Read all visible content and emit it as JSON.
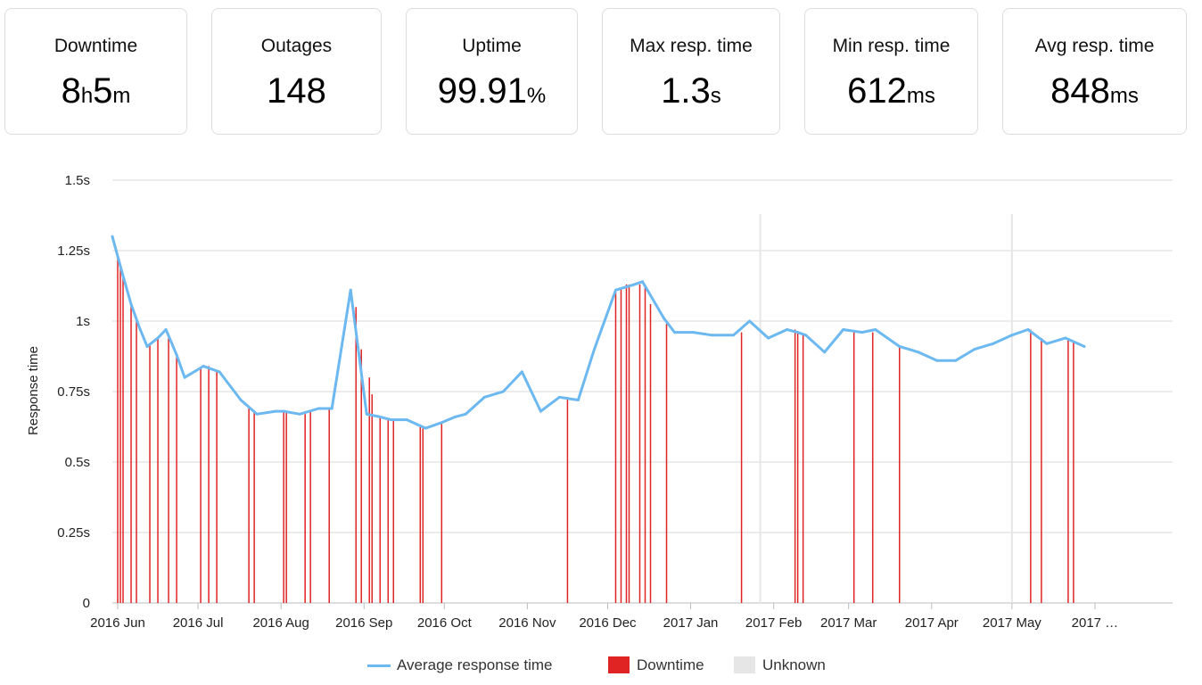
{
  "stats": [
    {
      "title": "Downtime",
      "parts": [
        {
          "v": "8",
          "u": "h"
        },
        {
          "v": "5",
          "u": "m"
        }
      ]
    },
    {
      "title": "Outages",
      "parts": [
        {
          "v": "148",
          "u": ""
        }
      ]
    },
    {
      "title": "Uptime",
      "parts": [
        {
          "v": "99.91",
          "u": "%"
        }
      ]
    },
    {
      "title": "Max resp. time",
      "parts": [
        {
          "v": "1.3",
          "u": "s"
        }
      ]
    },
    {
      "title": "Min resp. time",
      "parts": [
        {
          "v": "612",
          "u": "ms"
        }
      ]
    },
    {
      "title": "Avg resp. time",
      "parts": [
        {
          "v": "848",
          "u": "ms"
        }
      ]
    }
  ],
  "legend": {
    "avg": "Average response time",
    "downtime": "Downtime",
    "unknown": "Unknown"
  },
  "colors": {
    "line": "#6cb8f0",
    "downtime": "#e02424",
    "unknown": "#e6e6e6",
    "grid": "#d8d8d8"
  },
  "chart_data": {
    "type": "line",
    "ylabel": "Response time",
    "ylim": [
      0,
      1.5
    ],
    "yticks": [
      {
        "value": 0,
        "label": "0"
      },
      {
        "value": 0.25,
        "label": "0.25s"
      },
      {
        "value": 0.5,
        "label": "0.5s"
      },
      {
        "value": 0.75,
        "label": "0.75s"
      },
      {
        "value": 1,
        "label": "1s"
      },
      {
        "value": 1.25,
        "label": "1.25s"
      },
      {
        "value": 1.5,
        "label": "1.5s"
      }
    ],
    "xlim": [
      "2016-05-30",
      "2017-06-30"
    ],
    "xticks": [
      {
        "date": "2016-06-01",
        "label": "2016 Jun"
      },
      {
        "date": "2016-07-01",
        "label": "2016 Jul"
      },
      {
        "date": "2016-08-01",
        "label": "2016 Aug"
      },
      {
        "date": "2016-09-01",
        "label": "2016 Sep"
      },
      {
        "date": "2016-10-01",
        "label": "2016 Oct"
      },
      {
        "date": "2016-11-01",
        "label": "2016 Nov"
      },
      {
        "date": "2016-12-01",
        "label": "2016 Dec"
      },
      {
        "date": "2017-01-01",
        "label": "2017 Jan"
      },
      {
        "date": "2017-02-01",
        "label": "2017 Feb"
      },
      {
        "date": "2017-03-01",
        "label": "2017 Mar"
      },
      {
        "date": "2017-04-01",
        "label": "2017 Apr"
      },
      {
        "date": "2017-05-01",
        "label": "2017 May"
      },
      {
        "date": "2017-06-01",
        "label": "2017 …"
      }
    ],
    "series": [
      {
        "name": "Average response time",
        "points": [
          [
            "2016-05-30",
            1.3
          ],
          [
            "2016-06-01",
            1.23
          ],
          [
            "2016-06-03",
            1.16
          ],
          [
            "2016-06-06",
            1.06
          ],
          [
            "2016-06-09",
            0.98
          ],
          [
            "2016-06-12",
            0.91
          ],
          [
            "2016-06-16",
            0.94
          ],
          [
            "2016-06-19",
            0.97
          ],
          [
            "2016-06-23",
            0.88
          ],
          [
            "2016-06-26",
            0.8
          ],
          [
            "2016-07-03",
            0.84
          ],
          [
            "2016-07-09",
            0.82
          ],
          [
            "2016-07-17",
            0.72
          ],
          [
            "2016-07-23",
            0.67
          ],
          [
            "2016-07-30",
            0.68
          ],
          [
            "2016-08-02",
            0.68
          ],
          [
            "2016-08-08",
            0.67
          ],
          [
            "2016-08-15",
            0.69
          ],
          [
            "2016-08-20",
            0.69
          ],
          [
            "2016-08-27",
            1.11
          ],
          [
            "2016-09-02",
            0.67
          ],
          [
            "2016-09-07",
            0.66
          ],
          [
            "2016-09-11",
            0.65
          ],
          [
            "2016-09-17",
            0.65
          ],
          [
            "2016-09-24",
            0.62
          ],
          [
            "2016-09-30",
            0.64
          ],
          [
            "2016-10-05",
            0.66
          ],
          [
            "2016-10-09",
            0.67
          ],
          [
            "2016-10-16",
            0.73
          ],
          [
            "2016-10-23",
            0.75
          ],
          [
            "2016-10-30",
            0.82
          ],
          [
            "2016-11-06",
            0.68
          ],
          [
            "2016-11-13",
            0.73
          ],
          [
            "2016-11-20",
            0.72
          ],
          [
            "2016-11-26",
            0.9
          ],
          [
            "2016-12-04",
            1.11
          ],
          [
            "2016-12-11",
            1.13
          ],
          [
            "2016-12-14",
            1.14
          ],
          [
            "2016-12-22",
            1.01
          ],
          [
            "2016-12-26",
            0.96
          ],
          [
            "2017-01-02",
            0.96
          ],
          [
            "2017-01-09",
            0.95
          ],
          [
            "2017-01-17",
            0.95
          ],
          [
            "2017-01-23",
            1.0
          ],
          [
            "2017-01-30",
            0.94
          ],
          [
            "2017-02-06",
            0.97
          ],
          [
            "2017-02-10",
            0.96
          ],
          [
            "2017-02-13",
            0.95
          ],
          [
            "2017-02-20",
            0.89
          ],
          [
            "2017-02-27",
            0.97
          ],
          [
            "2017-03-06",
            0.96
          ],
          [
            "2017-03-11",
            0.97
          ],
          [
            "2017-03-20",
            0.91
          ],
          [
            "2017-03-27",
            0.89
          ],
          [
            "2017-04-03",
            0.86
          ],
          [
            "2017-04-10",
            0.86
          ],
          [
            "2017-04-17",
            0.9
          ],
          [
            "2017-04-24",
            0.92
          ],
          [
            "2017-05-01",
            0.95
          ],
          [
            "2017-05-07",
            0.97
          ],
          [
            "2017-05-14",
            0.92
          ],
          [
            "2017-05-21",
            0.94
          ],
          [
            "2017-05-28",
            0.91
          ]
        ]
      }
    ],
    "downtime": [
      [
        "2016-06-01",
        1.23
      ],
      [
        "2016-06-02",
        1.19
      ],
      [
        "2016-06-03",
        1.16
      ],
      [
        "2016-06-06",
        1.06
      ],
      [
        "2016-06-08",
        1.01
      ],
      [
        "2016-06-13",
        0.92
      ],
      [
        "2016-06-16",
        0.94
      ],
      [
        "2016-06-20",
        0.94
      ],
      [
        "2016-06-23",
        0.88
      ],
      [
        "2016-07-02",
        0.83
      ],
      [
        "2016-07-05",
        0.84
      ],
      [
        "2016-07-08",
        0.82
      ],
      [
        "2016-07-20",
        0.69
      ],
      [
        "2016-07-22",
        0.68
      ],
      [
        "2016-08-02",
        0.68
      ],
      [
        "2016-08-03",
        0.68
      ],
      [
        "2016-08-10",
        0.67
      ],
      [
        "2016-08-12",
        0.68
      ],
      [
        "2016-08-19",
        0.69
      ],
      [
        "2016-08-29",
        1.05
      ],
      [
        "2016-08-31",
        0.9
      ],
      [
        "2016-09-03",
        0.8
      ],
      [
        "2016-09-04",
        0.74
      ],
      [
        "2016-09-07",
        0.66
      ],
      [
        "2016-09-10",
        0.65
      ],
      [
        "2016-09-12",
        0.65
      ],
      [
        "2016-09-22",
        0.63
      ],
      [
        "2016-09-23",
        0.62
      ],
      [
        "2016-09-30",
        0.64
      ],
      [
        "2016-11-16",
        0.73
      ],
      [
        "2016-12-04",
        1.11
      ],
      [
        "2016-12-06",
        1.12
      ],
      [
        "2016-12-08",
        1.13
      ],
      [
        "2016-12-09",
        1.13
      ],
      [
        "2016-12-13",
        1.13
      ],
      [
        "2016-12-15",
        1.12
      ],
      [
        "2016-12-17",
        1.06
      ],
      [
        "2016-12-23",
        0.99
      ],
      [
        "2017-01-20",
        0.96
      ],
      [
        "2017-02-09",
        0.97
      ],
      [
        "2017-02-10",
        0.96
      ],
      [
        "2017-02-12",
        0.95
      ],
      [
        "2017-03-03",
        0.96
      ],
      [
        "2017-03-10",
        0.96
      ],
      [
        "2017-03-20",
        0.91
      ],
      [
        "2017-05-08",
        0.97
      ],
      [
        "2017-05-12",
        0.94
      ],
      [
        "2017-05-22",
        0.94
      ],
      [
        "2017-05-24",
        0.93
      ]
    ],
    "unknown": [
      "2017-01-27",
      "2017-05-01"
    ],
    "grid": true,
    "legend_position": "bottom"
  }
}
